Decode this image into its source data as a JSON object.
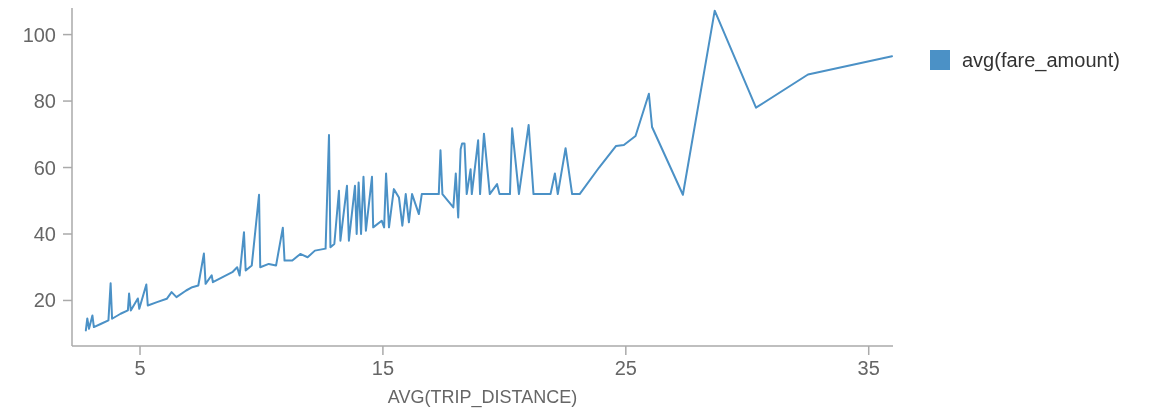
{
  "chart_data": {
    "type": "line",
    "xlabel": "AVG(TRIP_DISTANCE)",
    "xlim": [
      2.2,
      36
    ],
    "ylim": [
      6.3,
      108
    ],
    "xticks": [
      5,
      15,
      25,
      35
    ],
    "yticks": [
      20,
      40,
      60,
      80,
      100
    ],
    "grid": false,
    "legend": "top right",
    "marker": "none",
    "line_style": "solid",
    "x": [
      2.77,
      2.83,
      2.9,
      3.04,
      3.1,
      3.4,
      3.7,
      3.79,
      3.85,
      4.2,
      4.5,
      4.55,
      4.62,
      4.91,
      4.97,
      5.26,
      5.32,
      5.7,
      6.1,
      6.3,
      6.5,
      6.9,
      7.15,
      7.4,
      7.63,
      7.7,
      7.95,
      8.0,
      8.4,
      8.8,
      9.0,
      9.1,
      9.28,
      9.35,
      9.6,
      9.9,
      9.95,
      10.3,
      10.6,
      10.88,
      10.95,
      11.27,
      11.6,
      11.9,
      12.2,
      12.64,
      12.78,
      12.84,
      13.0,
      13.19,
      13.25,
      13.52,
      13.6,
      13.85,
      13.92,
      14.0,
      14.1,
      14.2,
      14.3,
      14.55,
      14.6,
      14.95,
      15.05,
      15.13,
      15.25,
      15.45,
      15.66,
      15.8,
      15.94,
      16.07,
      16.2,
      16.48,
      16.6,
      17.3,
      17.37,
      17.45,
      17.9,
      18.0,
      18.1,
      18.2,
      18.26,
      18.36,
      18.45,
      18.61,
      18.66,
      18.92,
      19.0,
      19.16,
      19.4,
      19.7,
      19.8,
      20.23,
      20.32,
      20.6,
      21.0,
      21.2,
      21.9,
      22.08,
      22.2,
      22.52,
      22.79,
      23.1,
      23.9,
      24.6,
      24.92,
      25.4,
      25.95,
      26.08,
      27.35,
      28.66,
      30.36,
      32.5,
      35.96
    ],
    "series": [
      {
        "name": "avg(fare_amount)",
        "color": "#4b91c6",
        "values": [
          11,
          14.6,
          11.5,
          15.5,
          12,
          13,
          14,
          25.2,
          14.5,
          16,
          17,
          22.1,
          17,
          20.6,
          17.5,
          24.8,
          18.5,
          19.5,
          20.5,
          22.5,
          21,
          23,
          24,
          24.5,
          34.1,
          25,
          27.6,
          25.5,
          27,
          28.5,
          30,
          27.5,
          40.5,
          29,
          30.5,
          51.8,
          30,
          31,
          30.5,
          41.9,
          32,
          32,
          34,
          33,
          35,
          35.6,
          69.8,
          36,
          37,
          53,
          38,
          54.5,
          38,
          54.5,
          40,
          55.5,
          40,
          57.2,
          41,
          57.2,
          42,
          44,
          42,
          58.2,
          42,
          53.5,
          51,
          42.5,
          52,
          43.5,
          52,
          46,
          52,
          52,
          65.2,
          52,
          48,
          58.2,
          45,
          65.5,
          67.2,
          67.2,
          52,
          59.5,
          52,
          68.2,
          52,
          70.2,
          52,
          55,
          52,
          52,
          71.8,
          52,
          72.8,
          52,
          52,
          58.2,
          52,
          65.8,
          52,
          52,
          60,
          66.5,
          66.8,
          69.5,
          82.2,
          72.2,
          51.8,
          107.2,
          78,
          88,
          93.5
        ]
      }
    ]
  }
}
